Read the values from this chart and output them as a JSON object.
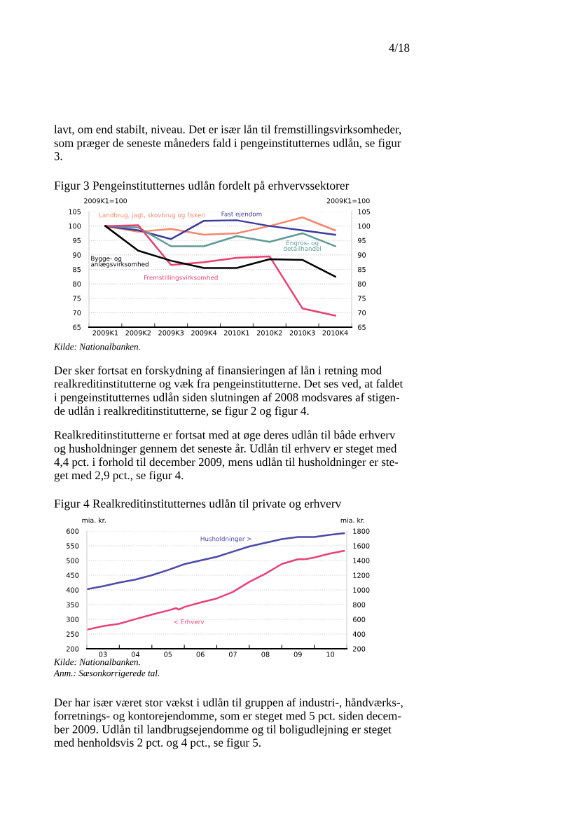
{
  "chart_data": [
    {
      "type": "line",
      "title": "Figur 3 Pengeinstitutternes udlån fordelt på erhvervssektorer",
      "ylabel": "2009K1=100",
      "y2label": "2009K1=100",
      "categories": [
        "2009K1",
        "2009K2",
        "2009K3",
        "2009K4",
        "2010K1",
        "2010K2",
        "2010K3",
        "2010K4"
      ],
      "series": [
        {
          "name": "Landbrug, jagt, skovbrug og fiskeri",
          "color": "#f4876e",
          "values": [
            100,
            98,
            99,
            97,
            97.5,
            100,
            103,
            98.5
          ]
        },
        {
          "name": "Fast ejendom",
          "color": "#3c3c9c",
          "values": [
            100,
            98.5,
            95.5,
            101.8,
            102,
            100,
            98.5,
            97
          ]
        },
        {
          "name": "Engros- og\ndetailhandel",
          "color": "#5f9a98",
          "values": [
            100,
            99.5,
            93,
            93,
            96.5,
            94.5,
            97.5,
            93
          ]
        },
        {
          "name": "Fremstillingsvirksomhed",
          "color": "#e8416e",
          "values": [
            100,
            100.3,
            86.5,
            87.5,
            89,
            89.5,
            71.5,
            69
          ]
        },
        {
          "name": "Bygge- og\nanlægsvirksomhed",
          "color": "#000000",
          "values": [
            100,
            91.5,
            88,
            85.5,
            85.5,
            88.5,
            88.3,
            82.5
          ]
        }
      ],
      "ylim": [
        65,
        105
      ],
      "yticks": [
        65,
        70,
        75,
        80,
        85,
        90,
        95,
        100,
        105
      ],
      "y2lim": [
        65,
        105
      ],
      "y2ticks": [
        65,
        70,
        75,
        80,
        85,
        90,
        95,
        100,
        105
      ],
      "grid": "y",
      "legend": false,
      "annotations": [
        "4/18",
        "lavt, om end stabilt, niveau. Det er især lån til fremstillingsvirksomheder,\nsom præger de seneste måneders fald i pengeinstitutternes udlån, se figur\n3.",
        "Kilde: Nationalbanken.",
        "Der sker fortsat en forskydning af finansieringen af lån i retning mod\nrealkreditinstitutterne og væk fra pengeinstitutterne. Det ses ved, at faldet\ni pengeinstitutternes udlån siden slutningen af 2008 modsvares af stigen-\nde udlån i realkreditinstitutterne, se figur 2 og figur 4.",
        "Realkreditinstitutterne er fortsat med at øge deres udlån til både erhverv\nog husholdninger gennem det seneste år. Udlån til erhverv er steget med\n4,4 pct. i forhold til december 2009, mens udlån til husholdninger er ste-\nget med 2,9 pct., se figur 4."
      ]
    },
    {
      "type": "line",
      "title": "Figur 4 Realkreditinstitutternes udlån til private og erhverv",
      "ylabel": "mia. kr.",
      "y2label": "mia. kr.",
      "series": [
        {
          "name": "Husholdninger >",
          "color": "#4a4aa8",
          "axis": "y2",
          "x": [
            "2003-01",
            "2003-07",
            "2004-01",
            "2004-07",
            "2005-01",
            "2005-07",
            "2006-01",
            "2006-07",
            "2007-01",
            "2007-07",
            "2008-01",
            "2008-07",
            "2009-01",
            "2009-07",
            "2010-01",
            "2010-07",
            "2010-12"
          ],
          "values": [
            1010,
            1050,
            1100,
            1140,
            1200,
            1270,
            1350,
            1400,
            1450,
            1520,
            1590,
            1640,
            1690,
            1720,
            1720,
            1750,
            1770
          ]
        },
        {
          "name": "< Erhverv",
          "color": "#e8417a",
          "x": [
            "2003-01",
            "2003-07",
            "2004-01",
            "2004-07",
            "2005-01",
            "2005-07",
            "2005-10",
            "2005-11",
            "2006-01",
            "2006-07",
            "2007-01",
            "2007-07",
            "2008-01",
            "2008-07",
            "2009-01",
            "2009-07",
            "2009-10",
            "2010-01",
            "2010-07",
            "2010-12"
          ],
          "values": [
            265,
            277,
            285,
            301,
            316,
            330,
            338,
            333,
            342,
            357,
            371,
            393,
            427,
            455,
            488,
            504,
            505,
            510,
            524,
            533
          ]
        }
      ],
      "xlim": [
        "2003-01",
        "2011-01"
      ],
      "xticks": [
        {
          "value": "2003-01",
          "label": null
        },
        {
          "value": "2003-07",
          "label": "03"
        },
        {
          "value": "2004-01",
          "label": null
        },
        {
          "value": "2004-07",
          "label": "04"
        },
        {
          "value": "2005-01",
          "label": null
        },
        {
          "value": "2005-07",
          "label": "05"
        },
        {
          "value": "2006-01",
          "label": null
        },
        {
          "value": "2006-07",
          "label": "06"
        },
        {
          "value": "2007-01",
          "label": null
        },
        {
          "value": "2007-07",
          "label": "07"
        },
        {
          "value": "2008-01",
          "label": null
        },
        {
          "value": "2008-07",
          "label": "08"
        },
        {
          "value": "2009-01",
          "label": null
        },
        {
          "value": "2009-07",
          "label": "09"
        },
        {
          "value": "2010-01",
          "label": null
        },
        {
          "value": "2010-07",
          "label": "10"
        },
        {
          "value": "2011-01",
          "label": null
        }
      ],
      "ylim": [
        200,
        600
      ],
      "yticks": [
        200,
        250,
        300,
        350,
        400,
        450,
        500,
        550,
        600
      ],
      "y2lim": [
        200,
        1800
      ],
      "y2ticks": [
        200,
        400,
        600,
        800,
        1000,
        1200,
        1400,
        1600,
        1800
      ],
      "grid": "y",
      "legend": false,
      "annotations": [
        "Kilde: Nationalbanken.",
        "Anm.: Sæsonkorrigerede tal.",
        "Der har især været stor vækst i udlån til gruppen af industri-, håndværks-,\nforretnings- og kontorejendomme, som er steget med 5 pct. siden decem-\nber 2009. Udlån til landbrugsejendomme og til boligudlejning er steget\nmed henholdsvis 2 pct. og 4 pct., se figur 5."
      ]
    }
  ]
}
